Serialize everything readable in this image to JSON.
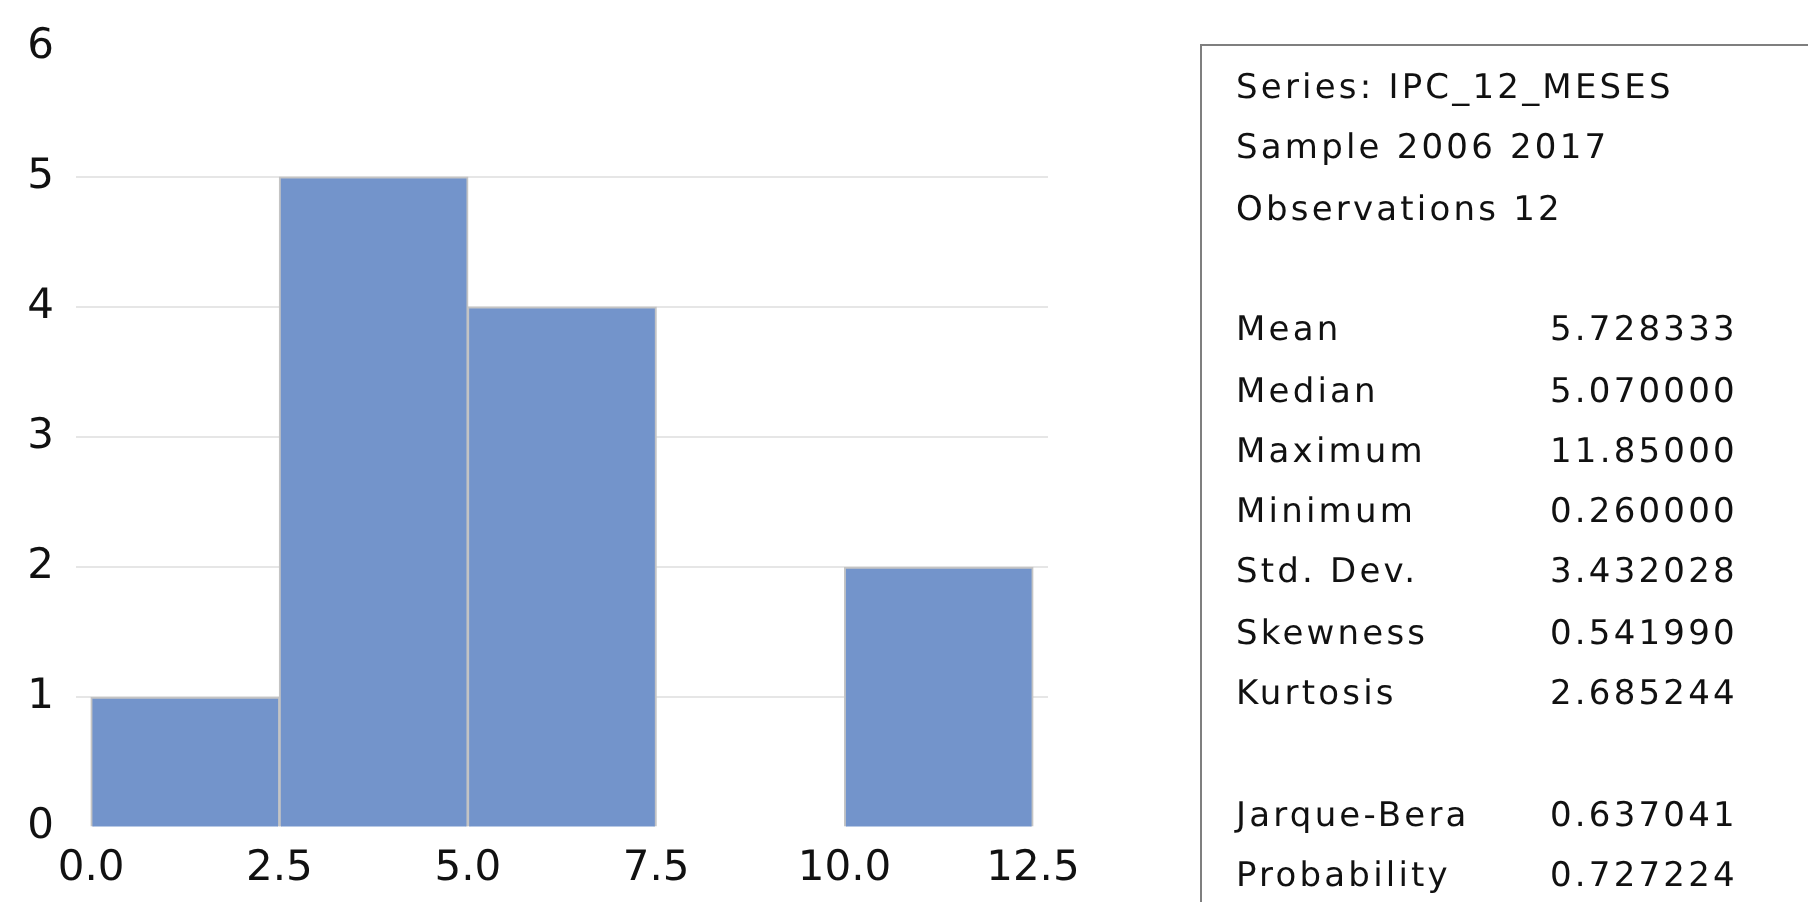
{
  "chart_data": [
    {
      "type": "histogram",
      "bins": [
        0,
        2.5,
        5,
        7.5,
        10,
        12.5
      ],
      "values": [
        1,
        5,
        4,
        0,
        2
      ],
      "color": "#7394cb",
      "xlim": [
        -0.2,
        12.7
      ],
      "xticks": [
        {
          "value": 0,
          "label": "0.0"
        },
        {
          "value": 2.5,
          "label": "2.5"
        },
        {
          "value": 5,
          "label": "5.0"
        },
        {
          "value": 7.5,
          "label": "7.5"
        },
        {
          "value": 10,
          "label": "10.0"
        },
        {
          "value": 12.5,
          "label": "12.5"
        }
      ],
      "ylim": [
        0,
        6
      ],
      "yticks": [
        0,
        1,
        2,
        3,
        4,
        5,
        6
      ],
      "grid": "y"
    },
    {
      "type": "other",
      "annotations": [
        "Series: IPC_12_MESES",
        "Sample 2006 2017",
        "Observations 12",
        "Mean 5.728333",
        "Median 5.070000",
        "Maximum 11.85000",
        "Minimum 0.260000",
        "Std. Dev. 3.432028",
        "Skewness 0.541990",
        "Kurtosis 2.685244",
        "Jarque-Bera 0.637041",
        "Probability 0.727224"
      ]
    }
  ]
}
